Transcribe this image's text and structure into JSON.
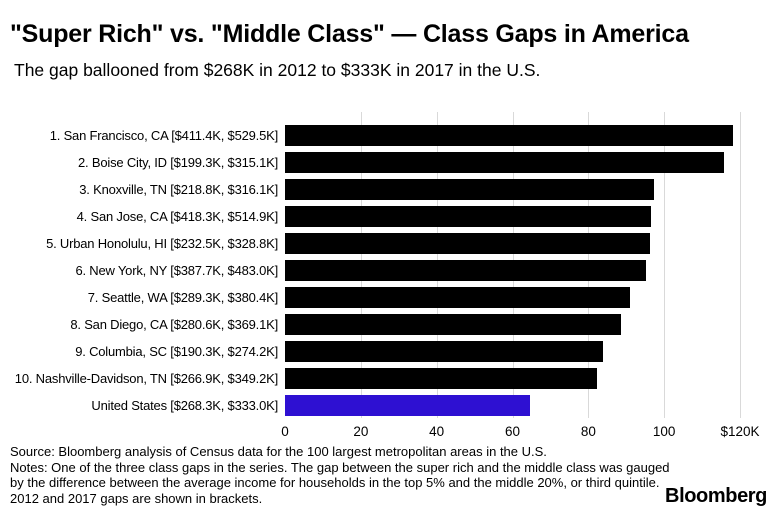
{
  "header": {
    "title": "\"Super Rich\" vs. \"Middle Class\" — Class Gaps in America",
    "subtitle": "The gap ballooned from $268K in 2012 to $333K in 2017 in the U.S."
  },
  "chart_data": {
    "type": "bar",
    "orientation": "horizontal",
    "title": "\"Super Rich\" vs. \"Middle Class\" — Class Gaps in America",
    "subtitle": "The gap ballooned from $268K in 2012 to $333K in 2017 in the U.S.",
    "categories": [
      "1. San Francisco, CA [$411.4K, $529.5K]",
      "2. Boise City, ID [$199.3K, $315.1K]",
      "3. Knoxville, TN [$218.8K, $316.1K]",
      "4. San Jose, CA [$418.3K, $514.9K]",
      "5. Urban Honolulu, HI [$232.5K, $328.8K]",
      "6. New York, NY [$387.7K, $483.0K]",
      "7. Seattle, WA [$289.3K, $380.4K]",
      "8. San Diego, CA [$280.6K, $369.1K]",
      "9. Columbia, SC [$190.3K, $274.2K]",
      "10. Nashville-Davidson, TN [$266.9K, $349.2K]",
      "United States [$268.3K, $333.0K]"
    ],
    "values": [
      118.1,
      115.8,
      97.3,
      96.6,
      96.3,
      95.3,
      91.1,
      88.5,
      83.9,
      82.3,
      64.7
    ],
    "gap_2012_thousands": [
      411.4,
      199.3,
      218.8,
      418.3,
      232.5,
      387.7,
      289.3,
      280.6,
      190.3,
      266.9,
      268.3
    ],
    "gap_2017_thousands": [
      529.5,
      315.1,
      316.1,
      514.9,
      328.8,
      483.0,
      380.4,
      369.1,
      274.2,
      349.2,
      333.0
    ],
    "value_meaning": "increase in class gap from 2012 to 2017, thousands of dollars",
    "xlim": [
      0,
      120
    ],
    "xticks": [
      0,
      20,
      40,
      60,
      80,
      100,
      120
    ],
    "xtick_labels": [
      "0",
      "20",
      "40",
      "60",
      "80",
      "100",
      "$120K"
    ],
    "grid": "vertical",
    "legend": "none",
    "highlight_index": 10,
    "bar_color": "#000000",
    "highlight_color": "#2e10d2",
    "gridline_color": "#d9d9d9"
  },
  "footer": {
    "lines": [
      "Source: Bloomberg analysis of Census data for the 100 largest metropolitan areas in the U.S.",
      "Notes: One of the three class gaps in the series. The gap between the super rich and the middle class was gauged",
      "by the difference between the average income for households in the top 5% and the middle 20%, or third quintile.",
      "2012 and 2017 gaps are shown in brackets."
    ],
    "brand": "Bloomberg"
  }
}
